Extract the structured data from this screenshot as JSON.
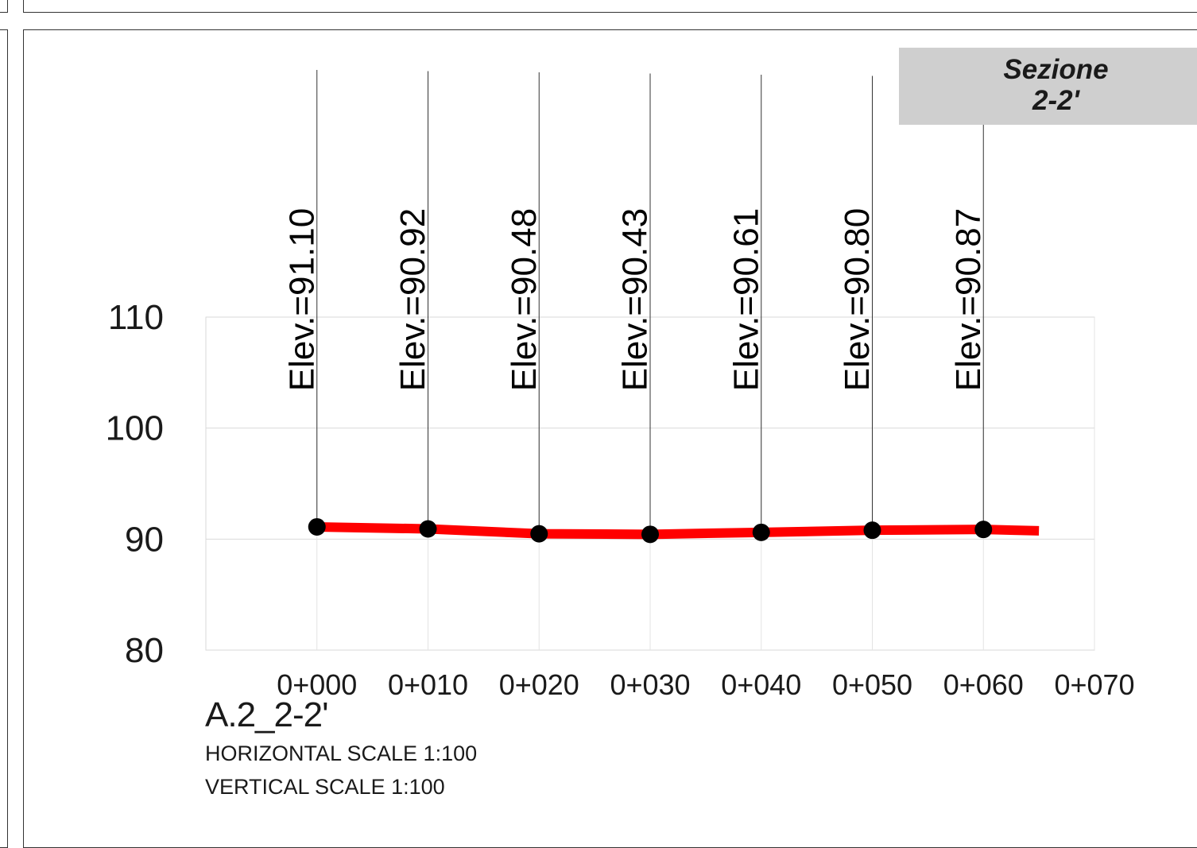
{
  "badge": {
    "line1": "Sezione",
    "line2": "2-2'"
  },
  "caption": {
    "title": "A.2_2-2'",
    "horizontal_scale": "HORIZONTAL SCALE 1:100",
    "vertical_scale": "VERTICAL SCALE 1:100"
  },
  "chart_data": {
    "type": "line",
    "x_tick_labels": [
      "0+000",
      "0+010",
      "0+020",
      "0+030",
      "0+040",
      "0+050",
      "0+060",
      "0+070"
    ],
    "x_ticks": [
      0,
      10,
      20,
      30,
      40,
      50,
      60,
      70
    ],
    "xlim": [
      -10,
      70
    ],
    "y_tick_labels": [
      "80",
      "90",
      "100",
      "110"
    ],
    "y_ticks": [
      80,
      90,
      100,
      110
    ],
    "ylim": [
      80,
      110
    ],
    "grid": true,
    "series": [
      {
        "color": "#ff0000",
        "x": [
          0,
          10,
          20,
          30,
          40,
          50,
          60,
          65
        ],
        "values": [
          91.1,
          90.92,
          90.48,
          90.43,
          90.61,
          90.8,
          90.87,
          90.75
        ]
      }
    ],
    "points": [
      {
        "x": 0,
        "y": 91.1,
        "label": "Elev.=91.10"
      },
      {
        "x": 10,
        "y": 90.92,
        "label": "Elev.=90.92"
      },
      {
        "x": 20,
        "y": 90.48,
        "label": "Elev.=90.48"
      },
      {
        "x": 30,
        "y": 90.43,
        "label": "Elev.=90.43"
      },
      {
        "x": 40,
        "y": 90.61,
        "label": "Elev.=90.61"
      },
      {
        "x": 50,
        "y": 90.8,
        "label": "Elev.=90.80"
      },
      {
        "x": 60,
        "y": 90.87,
        "label": "Elev.=90.87"
      }
    ],
    "marker_color": "#000000"
  }
}
